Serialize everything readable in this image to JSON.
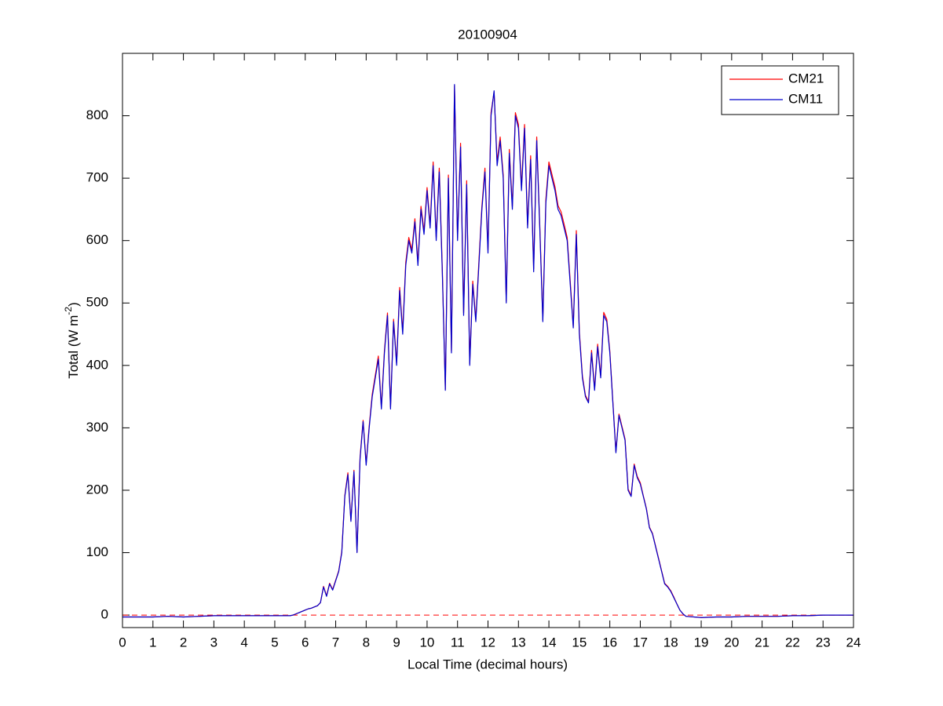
{
  "chart_data": {
    "type": "line",
    "title": "20100904",
    "x_label": "Local Time (decimal hours)",
    "y_label": {
      "text": "Total (W m",
      "superscript": "-2",
      "end": ")"
    },
    "xlim": [
      0,
      24
    ],
    "xticks": [
      0,
      1,
      2,
      3,
      4,
      5,
      6,
      7,
      8,
      9,
      10,
      11,
      12,
      13,
      14,
      15,
      16,
      17,
      18,
      19,
      20,
      21,
      22,
      23,
      24
    ],
    "ylim": [
      -20,
      900
    ],
    "yticks": [
      0,
      100,
      200,
      300,
      400,
      500,
      600,
      700,
      800
    ],
    "legend": "northeast",
    "reference_line": {
      "value": 0,
      "color": "#ff0000",
      "style": "dashed"
    },
    "x": [
      0,
      0.5,
      1,
      1.5,
      2,
      2.5,
      3,
      3.5,
      4,
      4.5,
      5,
      5.5,
      5.6,
      5.7,
      5.8,
      5.9,
      6.0,
      6.1,
      6.2,
      6.3,
      6.4,
      6.5,
      6.6,
      6.7,
      6.8,
      6.9,
      7.0,
      7.1,
      7.2,
      7.3,
      7.4,
      7.5,
      7.6,
      7.7,
      7.8,
      7.9,
      8.0,
      8.1,
      8.2,
      8.3,
      8.4,
      8.5,
      8.6,
      8.7,
      8.8,
      8.9,
      9.0,
      9.1,
      9.2,
      9.3,
      9.4,
      9.5,
      9.6,
      9.7,
      9.8,
      9.9,
      10.0,
      10.1,
      10.2,
      10.3,
      10.4,
      10.5,
      10.6,
      10.7,
      10.8,
      10.9,
      11.0,
      11.1,
      11.2,
      11.3,
      11.4,
      11.5,
      11.6,
      11.7,
      11.8,
      11.9,
      12.0,
      12.1,
      12.2,
      12.3,
      12.4,
      12.5,
      12.6,
      12.7,
      12.8,
      12.9,
      13.0,
      13.1,
      13.2,
      13.3,
      13.4,
      13.5,
      13.6,
      13.7,
      13.8,
      13.9,
      14.0,
      14.1,
      14.2,
      14.3,
      14.4,
      14.5,
      14.6,
      14.7,
      14.8,
      14.9,
      15.0,
      15.1,
      15.2,
      15.3,
      15.4,
      15.5,
      15.6,
      15.7,
      15.8,
      15.9,
      16.0,
      16.1,
      16.2,
      16.3,
      16.4,
      16.5,
      16.6,
      16.7,
      16.8,
      16.9,
      17.0,
      17.1,
      17.2,
      17.3,
      17.4,
      17.5,
      17.6,
      17.7,
      17.8,
      17.9,
      18.0,
      18.1,
      18.2,
      18.3,
      18.4,
      18.5,
      19,
      19.5,
      20,
      20.5,
      21,
      21.5,
      22,
      22.5,
      23,
      23.5,
      24
    ],
    "series": [
      {
        "name": "CM21",
        "color": "#ff0000",
        "values": [
          -3,
          -3,
          -3,
          -2,
          -3,
          -2,
          -1,
          -1,
          -1,
          -1,
          -1,
          -1,
          0,
          2,
          4,
          6,
          8,
          10,
          11,
          13,
          15,
          20,
          46,
          31,
          51,
          41,
          56,
          71,
          102,
          192,
          228,
          152,
          232,
          101,
          253,
          312,
          243,
          303,
          354,
          384,
          415,
          333,
          424,
          484,
          333,
          474,
          404,
          525,
          455,
          565,
          605,
          585,
          635,
          565,
          655,
          615,
          685,
          625,
          726,
          605,
          716,
          555,
          362,
          705,
          423,
          848,
          605,
          756,
          484,
          696,
          403,
          535,
          474,
          565,
          655,
          716,
          585,
          805,
          838,
          726,
          766,
          705,
          503,
          746,
          655,
          805,
          786,
          686,
          786,
          625,
          736,
          555,
          766,
          625,
          473,
          666,
          726,
          706,
          686,
          656,
          646,
          626,
          605,
          535,
          463,
          616,
          454,
          383,
          352,
          342,
          424,
          363,
          434,
          383,
          485,
          474,
          423,
          342,
          262,
          322,
          302,
          282,
          202,
          191,
          242,
          222,
          212,
          191,
          171,
          141,
          131,
          111,
          91,
          71,
          51,
          46,
          39,
          29,
          18,
          8,
          2,
          -2,
          -4,
          -3,
          -3,
          -2,
          -2,
          -2,
          -1,
          -1,
          0,
          0,
          0
        ]
      },
      {
        "name": "CM11",
        "color": "#0000cc",
        "values": [
          -3,
          -3,
          -3,
          -2,
          -3,
          -2,
          -1,
          -1,
          -1,
          -1,
          -1,
          -1,
          0,
          2,
          4,
          6,
          8,
          10,
          11,
          13,
          15,
          20,
          45,
          30,
          50,
          40,
          55,
          70,
          100,
          190,
          225,
          150,
          230,
          100,
          250,
          310,
          240,
          300,
          350,
          380,
          410,
          330,
          420,
          480,
          330,
          470,
          400,
          520,
          450,
          560,
          600,
          580,
          630,
          560,
          650,
          610,
          680,
          620,
          720,
          600,
          710,
          550,
          360,
          700,
          420,
          850,
          600,
          750,
          480,
          690,
          400,
          530,
          470,
          560,
          650,
          710,
          580,
          800,
          840,
          720,
          760,
          700,
          500,
          740,
          650,
          800,
          780,
          680,
          780,
          620,
          730,
          550,
          760,
          620,
          470,
          660,
          720,
          700,
          680,
          650,
          640,
          620,
          600,
          530,
          460,
          610,
          450,
          380,
          350,
          340,
          420,
          360,
          430,
          380,
          480,
          470,
          420,
          340,
          260,
          320,
          300,
          280,
          200,
          190,
          240,
          220,
          210,
          190,
          170,
          140,
          130,
          110,
          90,
          70,
          50,
          45,
          38,
          28,
          18,
          8,
          2,
          -2,
          -4,
          -3,
          -3,
          -2,
          -2,
          -2,
          -1,
          -1,
          0,
          0,
          0
        ]
      }
    ]
  }
}
